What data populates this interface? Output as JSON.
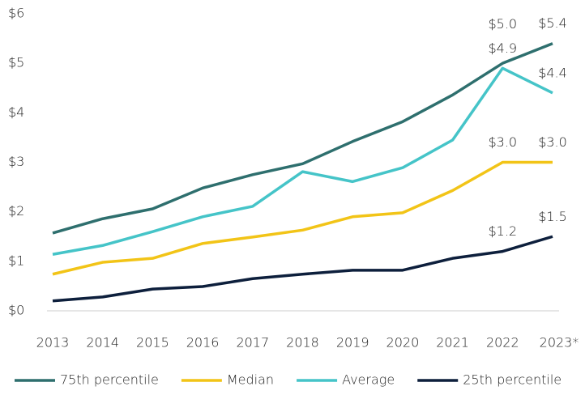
{
  "chart_data": {
    "type": "line",
    "categories": [
      "2013",
      "2014",
      "2015",
      "2016",
      "2017",
      "2018",
      "2019",
      "2020",
      "2021",
      "2022",
      "2023*"
    ],
    "series": [
      {
        "name": "75th percentile",
        "color": "#2e6f6e",
        "values": [
          1.57,
          1.86,
          2.06,
          2.48,
          2.75,
          2.97,
          3.42,
          3.82,
          4.36,
          5.0,
          5.4
        ],
        "value_labels": [
          null,
          null,
          null,
          null,
          null,
          null,
          null,
          null,
          null,
          "$5.0",
          "$5.4"
        ]
      },
      {
        "name": "Median",
        "color": "#f2c417",
        "values": [
          0.74,
          0.98,
          1.06,
          1.36,
          1.49,
          1.63,
          1.9,
          1.98,
          2.43,
          3.0,
          3.0
        ],
        "value_labels": [
          null,
          null,
          null,
          null,
          null,
          null,
          null,
          null,
          null,
          "$3.0",
          "$3.0"
        ]
      },
      {
        "name": "Average",
        "color": "#45c4c8",
        "values": [
          1.14,
          1.32,
          1.6,
          1.9,
          2.11,
          2.81,
          2.61,
          2.89,
          3.45,
          4.9,
          4.4
        ],
        "value_labels": [
          null,
          null,
          null,
          null,
          null,
          null,
          null,
          null,
          null,
          "$4.9",
          "$4.4"
        ]
      },
      {
        "name": "25th percentile",
        "color": "#0d1f3c",
        "values": [
          0.2,
          0.28,
          0.44,
          0.49,
          0.65,
          0.74,
          0.82,
          0.82,
          1.06,
          1.2,
          1.5
        ],
        "value_labels": [
          null,
          null,
          null,
          null,
          null,
          null,
          null,
          null,
          null,
          "$1.2",
          "$1.5"
        ]
      }
    ],
    "ylim": [
      0,
      6
    ],
    "yticks": [
      {
        "value": 0,
        "label": "$0"
      },
      {
        "value": 1,
        "label": "$1"
      },
      {
        "value": 2,
        "label": "$2"
      },
      {
        "value": 3,
        "label": "$3"
      },
      {
        "value": 4,
        "label": "$4"
      },
      {
        "value": 5,
        "label": "$5"
      },
      {
        "value": 6,
        "label": "$6"
      }
    ],
    "legend": "bottom"
  }
}
